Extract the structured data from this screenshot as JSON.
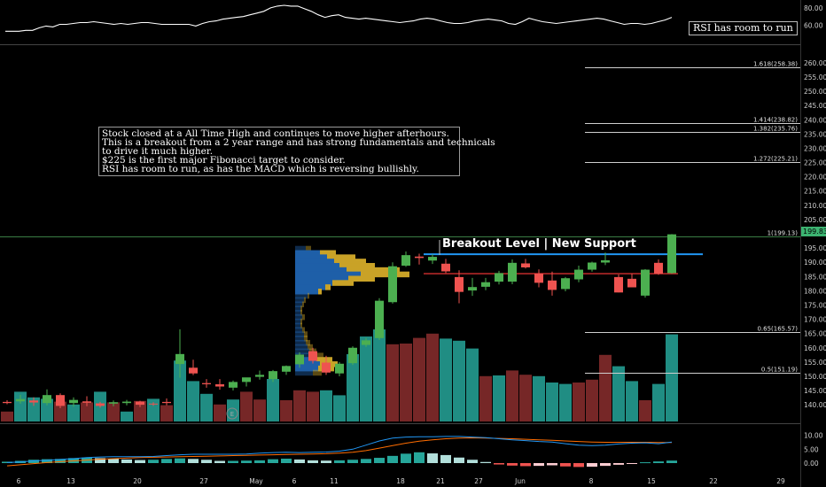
{
  "annotations": {
    "note_lines": [
      "Stock closed at a All Time High and continues to move higher afterhours.",
      "This is a breakout from a 2 year range and has strong fundamentals and technicals",
      "to drive it much higher.",
      "$225 is the first major Fibonacci target to consider.",
      "RSI has room to run, as has the MACD which is reversing bullishly."
    ],
    "rsi_tag": "RSI has room to run",
    "breakout_label": "Breakout Level | New Support",
    "last_price": "199.83",
    "earnings_marker": "E"
  },
  "colors": {
    "up": "#4caf50",
    "down": "#ef5350",
    "up_volume": "#26a69a",
    "down_volume": "#8b2e2e",
    "fib_line": "#cfcfcf",
    "support_line": "#2196f3",
    "resistance_line": "#d32f2f",
    "rsi_line": "#ffffff",
    "macd_line": "#2196f3",
    "signal_line": "#ff6d00",
    "profile_blue": "#1e5fa8",
    "profile_gold": "#c9a227"
  },
  "chart_data": {
    "type": "candlestick",
    "x_tick_labels": [
      "6",
      "13",
      "20",
      "27",
      "May",
      "6",
      "11",
      "18",
      "21",
      "27",
      "Jun",
      "8",
      "15",
      "22",
      "29"
    ],
    "price_axis": {
      "ylim": [
        136,
        264
      ],
      "ticks": [
        "140.00",
        "145.00",
        "150.00",
        "155.00",
        "160.00",
        "165.00",
        "170.00",
        "175.00",
        "180.00",
        "185.00",
        "190.00",
        "195.00",
        "200.00",
        "205.00",
        "210.00",
        "215.00",
        "220.00",
        "225.00",
        "230.00",
        "235.00",
        "240.00",
        "245.00",
        "250.00",
        "255.00",
        "260.00"
      ]
    },
    "candles": [
      {
        "o": 141.0,
        "h": 141.6,
        "l": 140.2,
        "c": 140.6
      },
      {
        "o": 141.2,
        "h": 143.5,
        "l": 140.4,
        "c": 142.0
      },
      {
        "o": 141.5,
        "h": 142.6,
        "l": 139.6,
        "c": 140.8
      },
      {
        "o": 140.6,
        "h": 145.4,
        "l": 139.8,
        "c": 143.4
      },
      {
        "o": 143.4,
        "h": 144.0,
        "l": 138.8,
        "c": 139.6
      },
      {
        "o": 140.6,
        "h": 142.6,
        "l": 139.3,
        "c": 141.7
      },
      {
        "o": 141.2,
        "h": 143.0,
        "l": 139.5,
        "c": 140.7
      },
      {
        "o": 140.5,
        "h": 141.0,
        "l": 139.0,
        "c": 139.6
      },
      {
        "o": 140.4,
        "h": 141.5,
        "l": 139.5,
        "c": 140.9
      },
      {
        "o": 140.6,
        "h": 141.7,
        "l": 139.8,
        "c": 141.1
      },
      {
        "o": 141.1,
        "h": 141.4,
        "l": 139.2,
        "c": 140.0
      },
      {
        "o": 140.4,
        "h": 140.9,
        "l": 139.6,
        "c": 140.2
      },
      {
        "o": 141.0,
        "h": 142.2,
        "l": 139.8,
        "c": 140.6
      },
      {
        "o": 154.3,
        "h": 166.5,
        "l": 149.5,
        "c": 157.8
      },
      {
        "o": 153.0,
        "h": 155.8,
        "l": 150.4,
        "c": 151.0
      },
      {
        "o": 147.6,
        "h": 149.0,
        "l": 146.0,
        "c": 147.2
      },
      {
        "o": 147.2,
        "h": 149.0,
        "l": 145.3,
        "c": 146.4
      },
      {
        "o": 146.0,
        "h": 148.5,
        "l": 145.0,
        "c": 148.0
      },
      {
        "o": 148.0,
        "h": 149.5,
        "l": 146.4,
        "c": 149.6
      },
      {
        "o": 149.8,
        "h": 152.0,
        "l": 148.8,
        "c": 150.5
      },
      {
        "o": 149.0,
        "h": 152.2,
        "l": 148.0,
        "c": 151.8
      },
      {
        "o": 151.6,
        "h": 153.8,
        "l": 150.5,
        "c": 153.6
      },
      {
        "o": 154.2,
        "h": 158.4,
        "l": 153.0,
        "c": 157.6
      },
      {
        "o": 158.8,
        "h": 160.0,
        "l": 154.5,
        "c": 155.4
      },
      {
        "o": 154.8,
        "h": 157.2,
        "l": 150.5,
        "c": 151.3
      },
      {
        "o": 151.0,
        "h": 155.0,
        "l": 150.0,
        "c": 154.4
      },
      {
        "o": 154.6,
        "h": 160.5,
        "l": 154.0,
        "c": 160.0
      },
      {
        "o": 161.0,
        "h": 163.4,
        "l": 160.3,
        "c": 162.6
      },
      {
        "o": 163.4,
        "h": 177.4,
        "l": 162.7,
        "c": 176.5
      },
      {
        "o": 176.0,
        "h": 190.0,
        "l": 175.5,
        "c": 188.6
      },
      {
        "o": 188.8,
        "h": 193.8,
        "l": 188.4,
        "c": 192.5
      },
      {
        "o": 192.0,
        "h": 193.0,
        "l": 189.2,
        "c": 191.5
      },
      {
        "o": 190.6,
        "h": 192.8,
        "l": 189.4,
        "c": 191.9
      },
      {
        "o": 189.5,
        "h": 191.2,
        "l": 186.2,
        "c": 186.8
      },
      {
        "o": 184.8,
        "h": 187.2,
        "l": 175.6,
        "c": 179.6
      },
      {
        "o": 180.1,
        "h": 184.5,
        "l": 178.2,
        "c": 181.3
      },
      {
        "o": 181.4,
        "h": 184.5,
        "l": 180.2,
        "c": 183.0
      },
      {
        "o": 183.2,
        "h": 187.0,
        "l": 182.2,
        "c": 186.2
      },
      {
        "o": 183.2,
        "h": 191.0,
        "l": 182.3,
        "c": 189.8
      },
      {
        "o": 189.6,
        "h": 191.2,
        "l": 187.8,
        "c": 188.2
      },
      {
        "o": 186.0,
        "h": 187.5,
        "l": 181.2,
        "c": 182.8
      },
      {
        "o": 183.6,
        "h": 186.7,
        "l": 178.3,
        "c": 180.3
      },
      {
        "o": 180.6,
        "h": 184.8,
        "l": 179.8,
        "c": 184.4
      },
      {
        "o": 184.0,
        "h": 188.8,
        "l": 183.0,
        "c": 187.4
      },
      {
        "o": 187.4,
        "h": 190.2,
        "l": 186.7,
        "c": 189.9
      },
      {
        "o": 189.9,
        "h": 193.4,
        "l": 189.0,
        "c": 190.7
      },
      {
        "o": 184.8,
        "h": 185.7,
        "l": 179.4,
        "c": 179.4
      },
      {
        "o": 184.2,
        "h": 186.0,
        "l": 181.2,
        "c": 181.2
      },
      {
        "o": 178.3,
        "h": 187.6,
        "l": 177.6,
        "c": 187.4
      },
      {
        "o": 189.8,
        "h": 191.0,
        "l": 185.6,
        "c": 186.0
      },
      {
        "o": 186.2,
        "h": 199.9,
        "l": 186.0,
        "c": 199.8
      }
    ],
    "volume": {
      "values": [
        14,
        42,
        34,
        32,
        28,
        24,
        27,
        42,
        27,
        14,
        29,
        32,
        23,
        86,
        57,
        39,
        24,
        31,
        42,
        31,
        60,
        30,
        44,
        42,
        44,
        37,
        95,
        120,
        130,
        109,
        110,
        118,
        124,
        117,
        114,
        103,
        64,
        65,
        72,
        66,
        64,
        55,
        53,
        55,
        59,
        94,
        78,
        57,
        30,
        53,
        123
      ],
      "colors": [
        "down",
        "up",
        "up",
        "up",
        "down",
        "up",
        "down",
        "up",
        "down",
        "up",
        "down",
        "up",
        "down",
        "up",
        "up",
        "up",
        "down",
        "up",
        "down",
        "down",
        "up",
        "down",
        "down",
        "down",
        "up",
        "up",
        "up",
        "up",
        "up",
        "down",
        "down",
        "down",
        "down",
        "up",
        "up",
        "up",
        "down",
        "up",
        "down",
        "down",
        "up",
        "up",
        "up",
        "down",
        "down",
        "down",
        "up",
        "up",
        "down",
        "up",
        "up"
      ]
    },
    "fib_levels": [
      {
        "label": "1.618(258.38)",
        "value": 258.38
      },
      {
        "label": "1.414(238.82)",
        "value": 238.82
      },
      {
        "label": "1.382(235.76)",
        "value": 235.76
      },
      {
        "label": "1.272(225.21)",
        "value": 225.21
      },
      {
        "label": "1(199.13)",
        "value": 199.13
      },
      {
        "label": "0.65(165.57)",
        "value": 165.57
      },
      {
        "label": "0.5(151.19)",
        "value": 151.19
      }
    ],
    "support_level": 192.8,
    "resistance_level": 186.0,
    "volume_profile": [
      {
        "price": 194.5,
        "blue": 12,
        "gold": 6
      },
      {
        "price": 193.0,
        "blue": 28,
        "gold": 18
      },
      {
        "price": 191.5,
        "blue": 36,
        "gold": 32
      },
      {
        "price": 190.0,
        "blue": 44,
        "gold": 36
      },
      {
        "price": 188.5,
        "blue": 50,
        "gold": 40
      },
      {
        "price": 187.0,
        "blue": 58,
        "gold": 60
      },
      {
        "price": 185.5,
        "blue": 74,
        "gold": 55
      },
      {
        "price": 184.0,
        "blue": 60,
        "gold": 30
      },
      {
        "price": 182.5,
        "blue": 42,
        "gold": 24
      },
      {
        "price": 181.0,
        "blue": 34,
        "gold": 6
      },
      {
        "price": 179.5,
        "blue": 26,
        "gold": 4
      },
      {
        "price": 178.0,
        "blue": 14,
        "gold": 2
      },
      {
        "price": 176.5,
        "blue": 10,
        "gold": 2
      },
      {
        "price": 175.0,
        "blue": 8,
        "gold": 2
      },
      {
        "price": 173.5,
        "blue": 6,
        "gold": 2
      },
      {
        "price": 172.0,
        "blue": 6,
        "gold": 2
      },
      {
        "price": 170.5,
        "blue": 8,
        "gold": 3
      },
      {
        "price": 169.0,
        "blue": 6,
        "gold": 2
      },
      {
        "price": 167.5,
        "blue": 6,
        "gold": 2
      },
      {
        "price": 166.0,
        "blue": 8,
        "gold": 3
      },
      {
        "price": 164.5,
        "blue": 10,
        "gold": 4
      },
      {
        "price": 163.0,
        "blue": 10,
        "gold": 4
      },
      {
        "price": 161.5,
        "blue": 12,
        "gold": 5
      },
      {
        "price": 160.0,
        "blue": 14,
        "gold": 6
      },
      {
        "price": 158.5,
        "blue": 16,
        "gold": 8
      },
      {
        "price": 157.0,
        "blue": 18,
        "gold": 14
      },
      {
        "price": 155.5,
        "blue": 24,
        "gold": 18
      },
      {
        "price": 154.0,
        "blue": 28,
        "gold": 20
      },
      {
        "price": 152.5,
        "blue": 26,
        "gold": 18
      },
      {
        "price": 151.0,
        "blue": 20,
        "gold": 10
      }
    ],
    "rsi": {
      "ylim": [
        40,
        85
      ],
      "ticks": [
        "80.00",
        "60.00"
      ],
      "values": [
        53,
        53,
        53,
        54,
        54,
        57,
        59,
        58,
        61,
        61,
        62,
        63,
        63,
        64,
        63,
        62,
        61,
        62,
        61,
        62,
        63,
        63,
        62,
        61,
        61,
        61,
        61,
        61,
        59,
        62,
        64,
        65,
        67,
        68,
        69,
        70,
        72,
        74,
        76,
        80,
        82,
        83,
        82,
        82,
        79,
        76,
        72,
        69,
        71,
        72,
        69,
        68,
        67,
        68,
        67,
        66,
        65,
        64,
        63,
        64,
        65,
        67,
        68,
        67,
        65,
        63,
        62,
        62,
        63,
        65,
        66,
        67,
        66,
        65,
        62,
        61,
        64,
        68,
        66,
        64,
        63,
        62,
        63,
        64,
        65,
        66,
        67,
        68,
        67,
        65,
        63,
        61,
        62,
        62,
        61,
        62,
        64,
        66,
        69
      ]
    },
    "macd": {
      "ylim": [
        -2,
        12
      ],
      "ticks": [
        "10.00",
        "5.00",
        "0.00"
      ],
      "histogram": [
        0.5,
        0.8,
        1.2,
        1.4,
        1.5,
        1.8,
        2.0,
        1.8,
        1.6,
        1.3,
        1.1,
        1.2,
        1.5,
        1.7,
        1.5,
        1.2,
        0.8,
        0.8,
        0.9,
        1.0,
        1.4,
        1.6,
        1.3,
        1.0,
        0.9,
        1.0,
        1.2,
        1.5,
        1.9,
        2.6,
        3.4,
        3.9,
        3.5,
        2.9,
        2.0,
        1.2,
        0.4,
        -0.5,
        -0.9,
        -1.1,
        -1.0,
        -0.8,
        -1.2,
        -1.4,
        -1.3,
        -1.0,
        -0.6,
        -0.2,
        0.3,
        0.6,
        0.9
      ],
      "macd_line": [
        0.2,
        0.4,
        0.8,
        1.0,
        1.3,
        1.6,
        2.0,
        2.2,
        2.3,
        2.3,
        2.3,
        2.4,
        2.7,
        3.0,
        3.2,
        3.2,
        3.2,
        3.2,
        3.3,
        3.6,
        3.8,
        3.9,
        3.8,
        3.9,
        4.0,
        4.3,
        5.0,
        6.5,
        8.0,
        9.0,
        9.4,
        9.5,
        9.5,
        9.6,
        9.6,
        9.4,
        9.2,
        8.8,
        8.4,
        8.1,
        7.8,
        7.6,
        7.0,
        6.5,
        6.3,
        6.5,
        6.9,
        7.2,
        7.3,
        7.0,
        7.6
      ],
      "signal_line": [
        -1.0,
        -0.6,
        -0.2,
        0.2,
        0.5,
        0.8,
        1.1,
        1.4,
        1.6,
        1.8,
        2.0,
        2.1,
        2.2,
        2.3,
        2.4,
        2.5,
        2.6,
        2.7,
        2.8,
        2.9,
        3.0,
        3.1,
        3.2,
        3.3,
        3.4,
        3.6,
        3.9,
        4.5,
        5.4,
        6.3,
        7.2,
        7.9,
        8.4,
        8.8,
        9.0,
        9.1,
        9.0,
        8.9,
        8.8,
        8.6,
        8.4,
        8.2,
        8.0,
        7.8,
        7.6,
        7.5,
        7.5,
        7.5,
        7.5,
        7.4,
        7.4
      ]
    }
  }
}
